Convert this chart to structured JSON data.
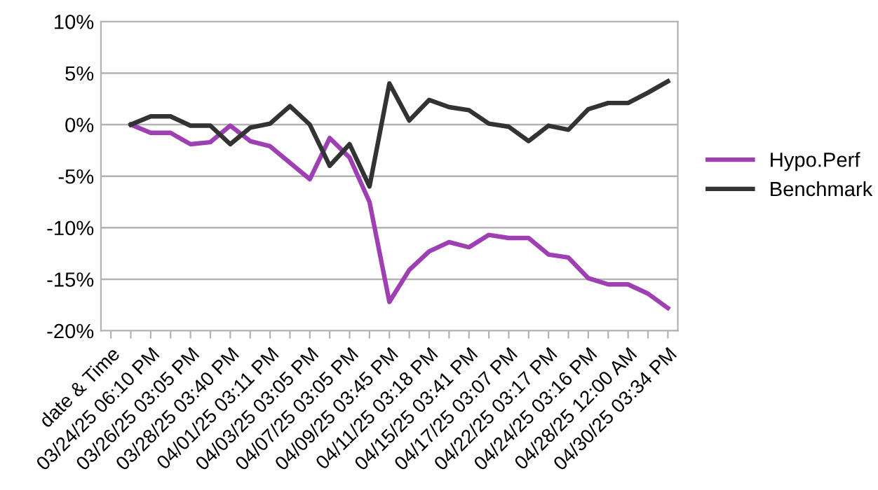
{
  "chart_data": {
    "type": "line",
    "categories": [
      "date & Time",
      null,
      "03/24/25 06:10 PM",
      null,
      "03/26/25 03:05 PM",
      null,
      "03/28/25 03:40 PM",
      null,
      "04/01/25 03:11 PM",
      null,
      "04/03/25 03:05 PM",
      null,
      "04/07/25 03:05 PM",
      null,
      "04/09/25 03:45 PM",
      null,
      "04/11/25 03:18 PM",
      null,
      "04/15/25 03:41 PM",
      null,
      "04/17/25 03:07 PM",
      null,
      "04/22/25 03:17 PM",
      null,
      "04/24/25 03:16 PM",
      null,
      "04/28/25 12:00 AM",
      null,
      "04/30/25 03:34 PM"
    ],
    "series": [
      {
        "name": "Hypo.Perf",
        "color": "#9e3fb3",
        "values": [
          null,
          0,
          -0.8,
          -0.8,
          -1.9,
          -1.7,
          -0.1,
          -1.6,
          -2.1,
          -3.7,
          -5.3,
          -1.3,
          -3.2,
          -7.5,
          -17.2,
          -14.1,
          -12.3,
          -11.4,
          -11.9,
          -10.7,
          -11.0,
          -11.0,
          -12.6,
          -12.9,
          -14.9,
          -15.5,
          -15.5,
          -16.4,
          -17.8
        ]
      },
      {
        "name": "Benchmark",
        "color": "#333333",
        "values": [
          null,
          0,
          0.8,
          0.8,
          -0.1,
          -0.1,
          -1.9,
          -0.3,
          0.1,
          1.8,
          0,
          -4.0,
          -1.9,
          -6.0,
          4.0,
          0.4,
          2.4,
          1.7,
          1.4,
          0.1,
          -0.2,
          -1.6,
          -0.1,
          -0.5,
          1.5,
          2.1,
          2.1,
          3.1,
          4.2
        ]
      }
    ],
    "ylim": [
      -20,
      10
    ],
    "yticks": [
      {
        "value": -20,
        "label": "-20%"
      },
      {
        "value": -15,
        "label": "-15%"
      },
      {
        "value": -10,
        "label": "-10%"
      },
      {
        "value": -5,
        "label": "-5%"
      },
      {
        "value": 0,
        "label": "0%"
      },
      {
        "value": 5,
        "label": "5%"
      },
      {
        "value": 10,
        "label": "10%"
      }
    ],
    "grid": "y",
    "legend": "right",
    "marker": "none",
    "line_style": "solid"
  }
}
